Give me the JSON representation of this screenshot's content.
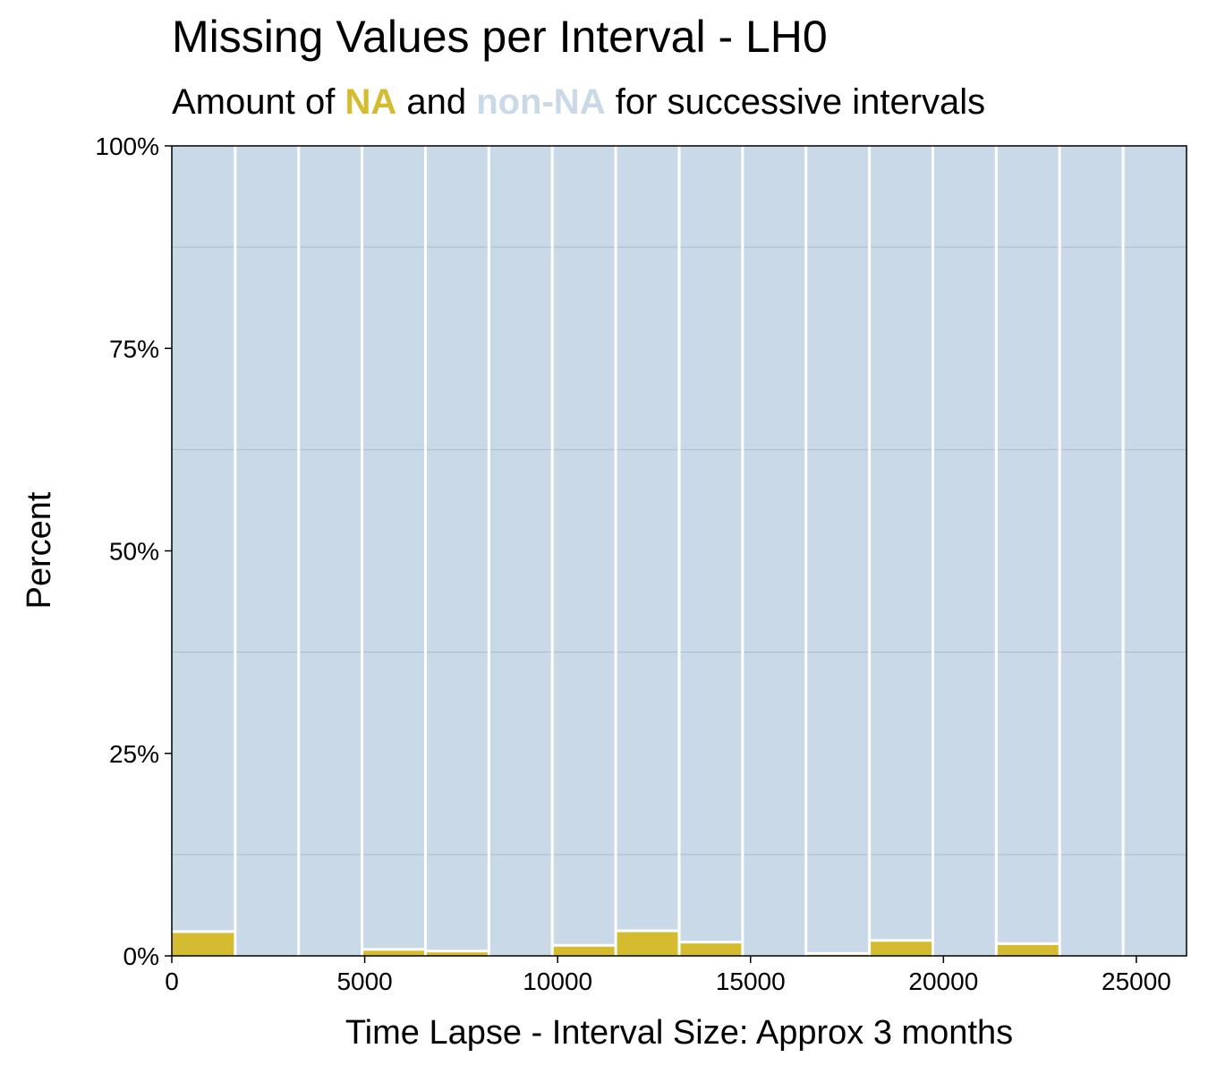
{
  "chart_data": {
    "type": "bar",
    "stacked": true,
    "percent": true,
    "title": "Missing Values per Interval - LH0",
    "subtitle": {
      "prefix": "Amount of ",
      "na_label": "NA",
      "middle": " and ",
      "nonna_label": "non-NA",
      "suffix": " for successive intervals"
    },
    "xlabel": "Time Lapse - Interval Size: Approx 3 months",
    "ylabel": "Percent",
    "xlim": [
      0,
      26300
    ],
    "ylim": [
      0,
      100
    ],
    "x_ticks": [
      0,
      5000,
      10000,
      15000,
      20000,
      25000
    ],
    "x_tick_labels": [
      "0",
      "5000",
      "10000",
      "15000",
      "20000",
      "25000"
    ],
    "y_ticks": [
      0,
      25,
      50,
      75,
      100
    ],
    "y_tick_labels": [
      "0%",
      "25%",
      "50%",
      "75%",
      "100%"
    ],
    "y_minor_gridlines": [
      12.5,
      37.5,
      62.5,
      87.5
    ],
    "colors": {
      "na": "#D5BB2F",
      "non_na": "#C9D9E8",
      "bar_outline": "#FFFFFF",
      "gridline": "#A9B4BF"
    },
    "bins": [
      {
        "start": 0,
        "end": 1643,
        "na_percent": 3.0
      },
      {
        "start": 1643,
        "end": 3287,
        "na_percent": 0.0
      },
      {
        "start": 3287,
        "end": 4931,
        "na_percent": 0.0
      },
      {
        "start": 4931,
        "end": 6575,
        "na_percent": 0.8
      },
      {
        "start": 6575,
        "end": 8218,
        "na_percent": 0.6
      },
      {
        "start": 8218,
        "end": 9862,
        "na_percent": 0.0
      },
      {
        "start": 9862,
        "end": 11506,
        "na_percent": 1.3
      },
      {
        "start": 11506,
        "end": 13150,
        "na_percent": 3.1
      },
      {
        "start": 13150,
        "end": 14793,
        "na_percent": 1.7
      },
      {
        "start": 14793,
        "end": 16437,
        "na_percent": 0.0
      },
      {
        "start": 16437,
        "end": 18081,
        "na_percent": 0.3
      },
      {
        "start": 18081,
        "end": 19725,
        "na_percent": 1.9
      },
      {
        "start": 19725,
        "end": 21368,
        "na_percent": 0.0
      },
      {
        "start": 21368,
        "end": 23012,
        "na_percent": 1.5
      },
      {
        "start": 23012,
        "end": 24656,
        "na_percent": 0.0
      },
      {
        "start": 24656,
        "end": 26300,
        "na_percent": 0.0
      }
    ]
  }
}
